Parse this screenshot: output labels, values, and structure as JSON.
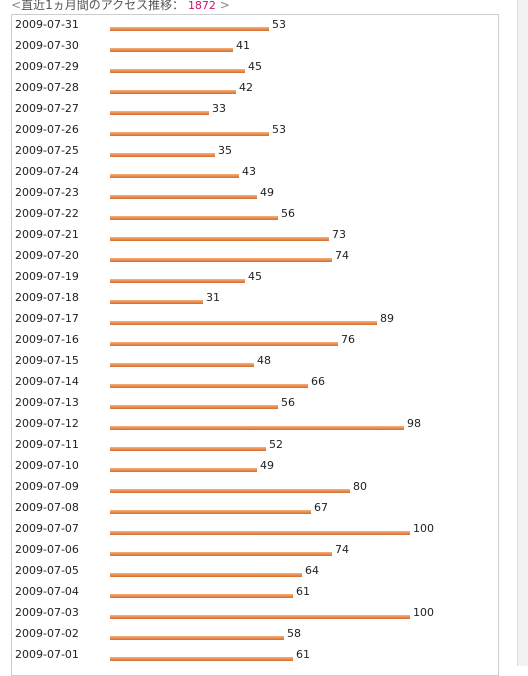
{
  "header": {
    "open": "<",
    "title": "直近1ヵ月間のアクセス推移：",
    "total": "1872",
    "close": ">"
  },
  "chart_data": {
    "type": "bar",
    "orientation": "horizontal",
    "title": "直近1ヵ月間のアクセス推移",
    "total": 1872,
    "xlim": [
      0,
      100
    ],
    "bar_color": "#e9874a",
    "categories": [
      "2009-07-31",
      "2009-07-30",
      "2009-07-29",
      "2009-07-28",
      "2009-07-27",
      "2009-07-26",
      "2009-07-25",
      "2009-07-24",
      "2009-07-23",
      "2009-07-22",
      "2009-07-21",
      "2009-07-20",
      "2009-07-19",
      "2009-07-18",
      "2009-07-17",
      "2009-07-16",
      "2009-07-15",
      "2009-07-14",
      "2009-07-13",
      "2009-07-12",
      "2009-07-11",
      "2009-07-10",
      "2009-07-09",
      "2009-07-08",
      "2009-07-07",
      "2009-07-06",
      "2009-07-05",
      "2009-07-04",
      "2009-07-03",
      "2009-07-02",
      "2009-07-01"
    ],
    "values": [
      53,
      41,
      45,
      42,
      33,
      53,
      35,
      43,
      49,
      56,
      73,
      74,
      45,
      31,
      89,
      76,
      48,
      66,
      56,
      98,
      52,
      49,
      80,
      67,
      100,
      74,
      64,
      61,
      100,
      58,
      61
    ]
  }
}
